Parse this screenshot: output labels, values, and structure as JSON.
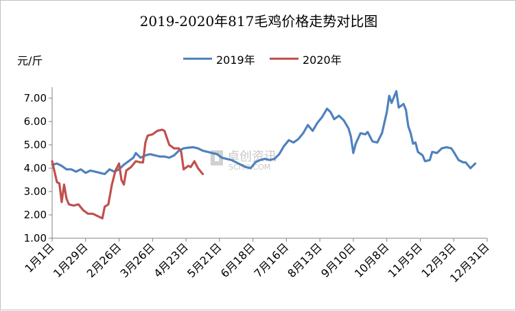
{
  "chart_data": {
    "type": "line",
    "title": "2019-2020年817毛鸡价格走势对比图",
    "ylabel": "元/斤",
    "xlabel": "",
    "ylim": [
      1.0,
      7.0
    ],
    "yticks": [
      "1.00",
      "2.00",
      "3.00",
      "4.00",
      "5.00",
      "6.00",
      "7.00"
    ],
    "xticks": [
      "1月1日",
      "1月29日",
      "2月26日",
      "3月26日",
      "4月23日",
      "5月21日",
      "6月18日",
      "7月16日",
      "8月13日",
      "9月10日",
      "10月8日",
      "11月5日",
      "12月3日",
      "12月31日"
    ],
    "legend_position": "top-center",
    "grid": false,
    "watermark": {
      "main": "卓创资讯",
      "sub": "SCI99.COM"
    },
    "series": [
      {
        "name": "2019年",
        "color": "#4f81bd",
        "points": [
          [
            0,
            4.15
          ],
          [
            4,
            4.2
          ],
          [
            8,
            4.1
          ],
          [
            12,
            3.95
          ],
          [
            16,
            3.95
          ],
          [
            20,
            3.85
          ],
          [
            24,
            3.95
          ],
          [
            28,
            3.8
          ],
          [
            32,
            3.9
          ],
          [
            36,
            3.85
          ],
          [
            40,
            3.8
          ],
          [
            44,
            3.75
          ],
          [
            48,
            3.95
          ],
          [
            52,
            3.85
          ],
          [
            56,
            3.95
          ],
          [
            60,
            4.15
          ],
          [
            64,
            4.3
          ],
          [
            68,
            4.45
          ],
          [
            70,
            4.65
          ],
          [
            74,
            4.45
          ],
          [
            78,
            4.55
          ],
          [
            82,
            4.6
          ],
          [
            86,
            4.55
          ],
          [
            90,
            4.5
          ],
          [
            94,
            4.5
          ],
          [
            98,
            4.45
          ],
          [
            102,
            4.55
          ],
          [
            106,
            4.75
          ],
          [
            110,
            4.85
          ],
          [
            114,
            4.88
          ],
          [
            118,
            4.9
          ],
          [
            122,
            4.85
          ],
          [
            126,
            4.75
          ],
          [
            130,
            4.7
          ],
          [
            134,
            4.65
          ],
          [
            138,
            4.6
          ],
          [
            142,
            4.45
          ],
          [
            146,
            4.4
          ],
          [
            150,
            4.35
          ],
          [
            154,
            4.25
          ],
          [
            158,
            4.15
          ],
          [
            162,
            4.05
          ],
          [
            166,
            4.0
          ],
          [
            170,
            4.25
          ],
          [
            174,
            4.35
          ],
          [
            178,
            4.4
          ],
          [
            182,
            4.35
          ],
          [
            186,
            4.4
          ],
          [
            190,
            4.6
          ],
          [
            194,
            4.95
          ],
          [
            198,
            5.2
          ],
          [
            202,
            5.1
          ],
          [
            206,
            5.25
          ],
          [
            210,
            5.5
          ],
          [
            214,
            5.85
          ],
          [
            218,
            5.6
          ],
          [
            222,
            5.95
          ],
          [
            226,
            6.2
          ],
          [
            230,
            6.55
          ],
          [
            233,
            6.4
          ],
          [
            236,
            6.1
          ],
          [
            240,
            6.25
          ],
          [
            244,
            6.05
          ],
          [
            248,
            5.7
          ],
          [
            250,
            5.35
          ],
          [
            252,
            4.65
          ],
          [
            254,
            5.05
          ],
          [
            258,
            5.5
          ],
          [
            262,
            5.45
          ],
          [
            264,
            5.55
          ],
          [
            268,
            5.15
          ],
          [
            272,
            5.1
          ],
          [
            276,
            5.5
          ],
          [
            280,
            6.4
          ],
          [
            282,
            7.1
          ],
          [
            284,
            6.8
          ],
          [
            288,
            7.3
          ],
          [
            290,
            6.6
          ],
          [
            294,
            6.75
          ],
          [
            296,
            6.5
          ],
          [
            298,
            5.8
          ],
          [
            300,
            5.5
          ],
          [
            302,
            5.05
          ],
          [
            304,
            5.1
          ],
          [
            306,
            4.7
          ],
          [
            310,
            4.55
          ],
          [
            312,
            4.3
          ],
          [
            316,
            4.35
          ],
          [
            318,
            4.7
          ],
          [
            322,
            4.65
          ],
          [
            326,
            4.85
          ],
          [
            330,
            4.9
          ],
          [
            334,
            4.85
          ],
          [
            336,
            4.7
          ],
          [
            340,
            4.35
          ],
          [
            344,
            4.25
          ],
          [
            346,
            4.25
          ],
          [
            350,
            4.0
          ],
          [
            352,
            4.1
          ],
          [
            354,
            4.2
          ]
        ]
      },
      {
        "name": "2020年",
        "color": "#c0504d",
        "points": [
          [
            0,
            4.3
          ],
          [
            2,
            3.85
          ],
          [
            4,
            3.4
          ],
          [
            6,
            3.35
          ],
          [
            8,
            2.55
          ],
          [
            10,
            3.3
          ],
          [
            12,
            2.7
          ],
          [
            14,
            2.45
          ],
          [
            18,
            2.4
          ],
          [
            22,
            2.45
          ],
          [
            26,
            2.2
          ],
          [
            30,
            2.05
          ],
          [
            34,
            2.05
          ],
          [
            38,
            1.95
          ],
          [
            42,
            1.85
          ],
          [
            44,
            2.35
          ],
          [
            47,
            2.45
          ],
          [
            50,
            3.3
          ],
          [
            53,
            3.9
          ],
          [
            56,
            4.2
          ],
          [
            58,
            3.5
          ],
          [
            60,
            3.3
          ],
          [
            62,
            3.9
          ],
          [
            66,
            4.05
          ],
          [
            70,
            4.3
          ],
          [
            74,
            4.25
          ],
          [
            76,
            4.25
          ],
          [
            78,
            5.1
          ],
          [
            80,
            5.4
          ],
          [
            84,
            5.45
          ],
          [
            88,
            5.6
          ],
          [
            92,
            5.65
          ],
          [
            94,
            5.6
          ],
          [
            96,
            5.3
          ],
          [
            98,
            5.0
          ],
          [
            102,
            4.85
          ],
          [
            106,
            4.85
          ],
          [
            108,
            4.7
          ],
          [
            110,
            3.95
          ],
          [
            114,
            4.1
          ],
          [
            116,
            4.05
          ],
          [
            119,
            4.3
          ],
          [
            122,
            4.0
          ],
          [
            126,
            3.75
          ]
        ]
      }
    ]
  }
}
